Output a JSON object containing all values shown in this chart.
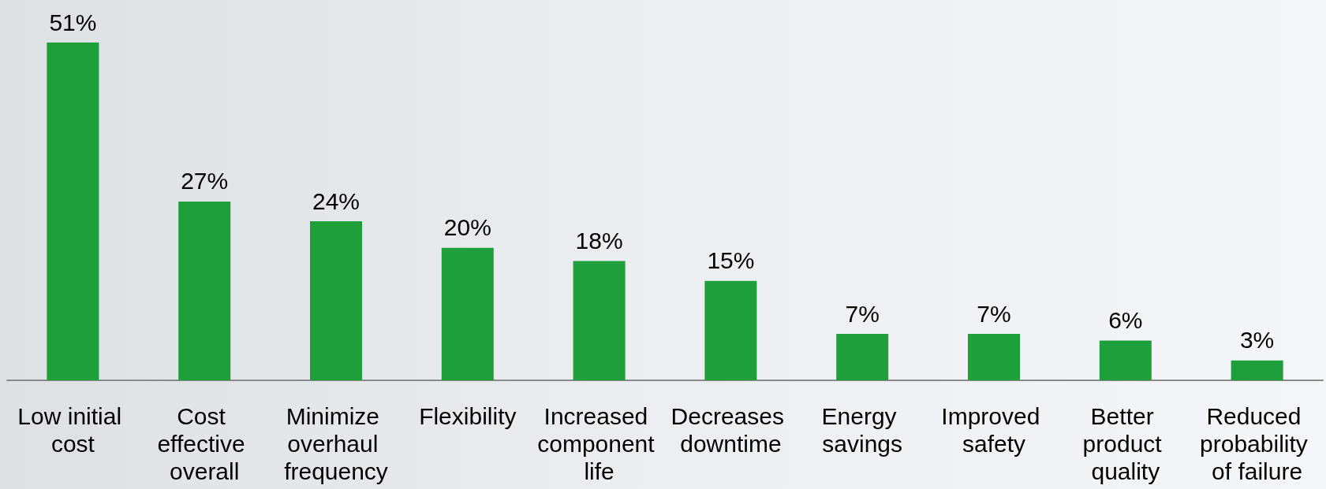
{
  "chart_data": {
    "type": "bar",
    "categories": [
      "Low initial cost",
      "Cost effective overall",
      "Minimize overhaul frequency",
      "Flexibility",
      "Increased component life",
      "Decreases downtime",
      "Energy savings",
      "Improved safety",
      "Better product quality",
      "Reduced probability of failure"
    ],
    "values": [
      51,
      27,
      24,
      20,
      18,
      15,
      7,
      7,
      6,
      3
    ],
    "value_labels": [
      "51%",
      "27%",
      "24%",
      "20%",
      "18%",
      "15%",
      "7%",
      "7%",
      "6%",
      "3%"
    ],
    "color": "#1f9e3c",
    "tick_labels": "x"
  }
}
